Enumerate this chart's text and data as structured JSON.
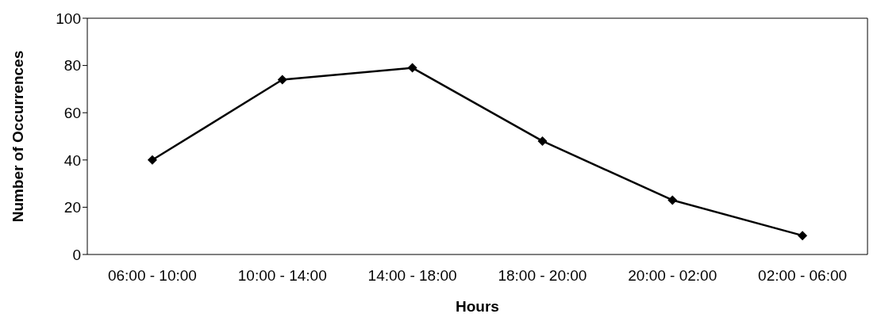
{
  "chart_data": {
    "type": "line",
    "xlabel": "Hours",
    "ylabel": "Number of Occurrences",
    "categories": [
      "06:00 - 10:00",
      "10:00 - 14:00",
      "14:00 - 18:00",
      "18:00 - 20:00",
      "20:00 - 02:00",
      "02:00 - 06:00"
    ],
    "series": [
      {
        "color": "#000000",
        "values": [
          40,
          74,
          79,
          48,
          23,
          8
        ]
      }
    ],
    "ylim": [
      0,
      100
    ],
    "yticks": [
      0,
      20,
      40,
      60,
      80,
      100
    ],
    "grid": false,
    "marker": "diamond",
    "line_style": "solid"
  }
}
